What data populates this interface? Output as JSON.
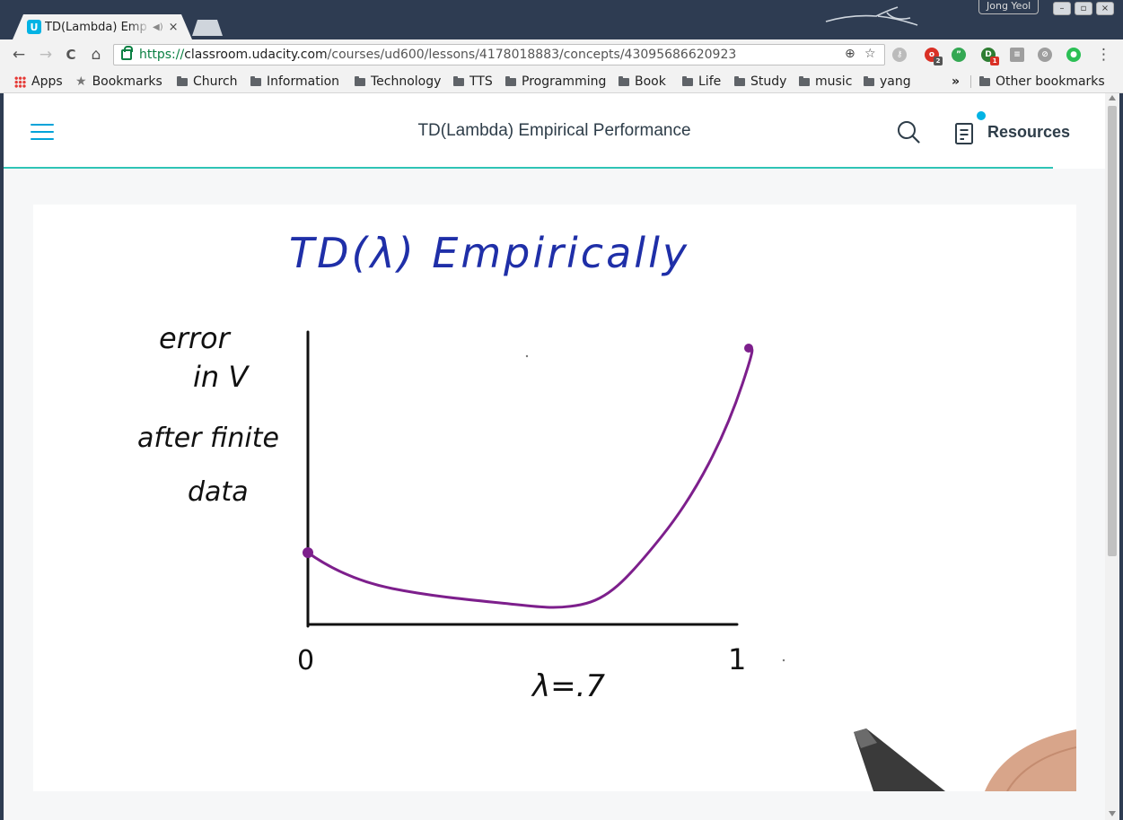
{
  "browser": {
    "tab": {
      "title": "TD(Lambda) Emp",
      "close": "×"
    },
    "window": {
      "user": "Jong Yeol",
      "minimize": "–",
      "maximize": "▫",
      "close": "×"
    },
    "nav": {
      "back": "←",
      "forward": "→",
      "reload": "C",
      "home": "⌂"
    },
    "address": {
      "scheme": "https://",
      "host": "classroom.udacity.com",
      "path": "/courses/ud600/lessons/4178018883/concepts/43095686620923"
    },
    "extensions": [
      {
        "name": "o",
        "color": "#d93025",
        "badge": "2",
        "badge_color": "#555"
      },
      {
        "name": "”",
        "color": "#34a853",
        "badge": "",
        "badge_color": ""
      },
      {
        "name": "D",
        "color": "#2e7d32",
        "badge": "1",
        "badge_color": "#d93025"
      },
      {
        "name": "≡",
        "color": "#9e9e9e",
        "badge": "",
        "badge_color": ""
      },
      {
        "name": "⊘",
        "color": "#9e9e9e",
        "badge": "",
        "badge_color": ""
      },
      {
        "name": "●",
        "color": "#2bbf55",
        "badge": "",
        "badge_color": ""
      }
    ],
    "bookmarks": {
      "apps": "Apps",
      "bookmarks": "Bookmarks",
      "folders": [
        "Church",
        "Information",
        "Technology",
        "TTS",
        "Programming",
        "Book",
        "Life",
        "Study",
        "music",
        "yang"
      ],
      "overflow": "»",
      "other": "Other bookmarks"
    }
  },
  "site": {
    "lesson_title": "TD(Lambda) Empirical Performance",
    "resources_label": "Resources",
    "accent_color": "#02b3e4",
    "progress_fraction": 0.953
  },
  "video": {
    "heading": "TD(λ) Empirically",
    "ylabel_lines": [
      "error",
      "in V",
      "after finite",
      "data"
    ],
    "x_start_label": "0",
    "x_end_label": "1",
    "annotation": "λ=.7",
    "ink_colors": {
      "heading": "#1f2fa8",
      "text": "#111111",
      "curve": "#7d1f8c"
    }
  }
}
